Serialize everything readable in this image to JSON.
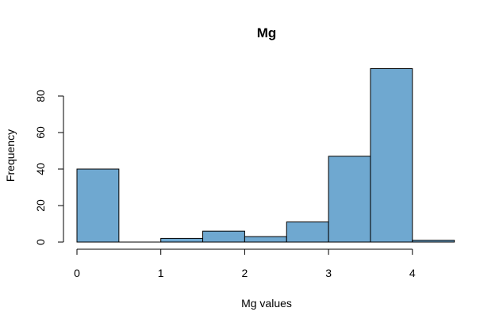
{
  "chart_data": {
    "type": "bar",
    "title": "Mg",
    "xlabel": "Mg values",
    "ylabel": "Frequency",
    "bar_color": "#6fa8d0",
    "bins": [
      {
        "start": 0.0,
        "end": 0.5,
        "count": 40
      },
      {
        "start": 0.5,
        "end": 1.0,
        "count": 0
      },
      {
        "start": 1.0,
        "end": 1.5,
        "count": 2
      },
      {
        "start": 1.5,
        "end": 2.0,
        "count": 6
      },
      {
        "start": 2.0,
        "end": 2.5,
        "count": 3
      },
      {
        "start": 2.5,
        "end": 3.0,
        "count": 11
      },
      {
        "start": 3.0,
        "end": 3.5,
        "count": 47
      },
      {
        "start": 3.5,
        "end": 4.0,
        "count": 95
      },
      {
        "start": 4.0,
        "end": 4.5,
        "count": 1
      }
    ],
    "x_ticks": [
      "0",
      "1",
      "2",
      "3",
      "4"
    ],
    "y_ticks": [
      "0",
      "20",
      "40",
      "60",
      "80"
    ],
    "xlim": [
      0,
      4.5
    ],
    "ylim": [
      0,
      95
    ],
    "grid": false
  }
}
